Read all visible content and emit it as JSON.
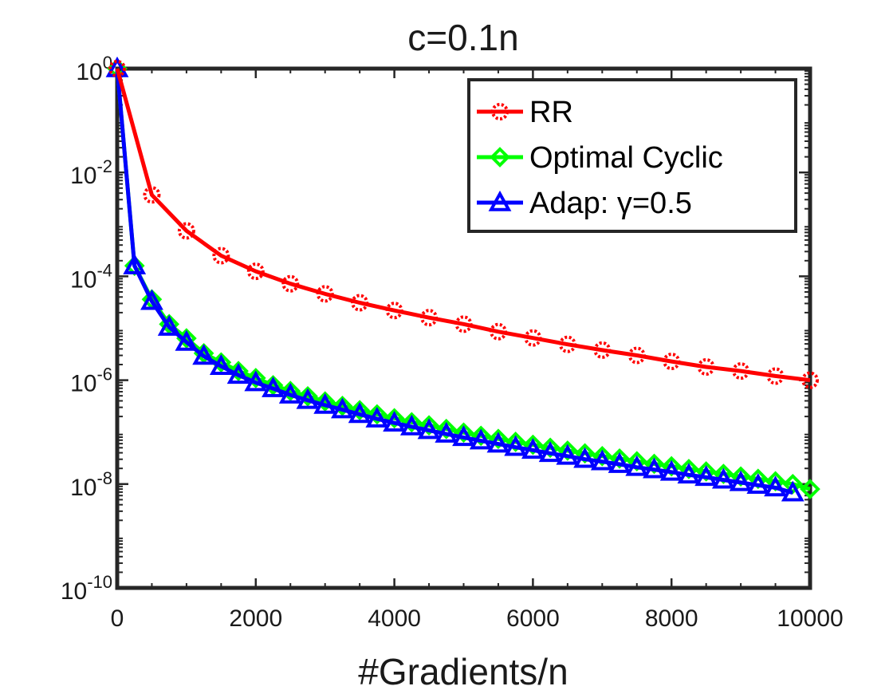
{
  "chart_data": {
    "type": "line",
    "title": "c=0.1n",
    "xlabel": "#Gradients/n",
    "ylabel": "",
    "xlim": [
      0,
      10000
    ],
    "ylim": [
      1e-10,
      1
    ],
    "yscale": "log",
    "x_ticks": [
      0,
      2000,
      4000,
      6000,
      8000,
      10000
    ],
    "x_tick_labels": [
      "0",
      "2000",
      "4000",
      "6000",
      "8000",
      "10000"
    ],
    "y_ticks": [
      1,
      0.01,
      0.0001,
      1e-06,
      1e-08,
      1e-10
    ],
    "y_tick_labels": [
      {
        "base": "10",
        "exp": "0"
      },
      {
        "base": "10",
        "exp": "-2"
      },
      {
        "base": "10",
        "exp": "-4"
      },
      {
        "base": "10",
        "exp": "-6"
      },
      {
        "base": "10",
        "exp": "-8"
      },
      {
        "base": "10",
        "exp": "-10"
      }
    ],
    "grid": false,
    "legend_position": "top-right",
    "series": [
      {
        "name": "RR",
        "color": "#ff0000",
        "marker": "circle",
        "x": [
          0,
          500,
          1000,
          1500,
          2000,
          2500,
          3000,
          3500,
          4000,
          4500,
          5000,
          5500,
          6000,
          6500,
          7000,
          7500,
          8000,
          8500,
          9000,
          9500,
          10000
        ],
        "y": [
          1,
          0.0037,
          0.00075,
          0.00025,
          0.000125,
          7.2e-05,
          4.6e-05,
          3.1e-05,
          2.2e-05,
          1.6e-05,
          1.2e-05,
          8.6e-06,
          6.5e-06,
          4.9e-06,
          3.8e-06,
          3e-06,
          2.3e-06,
          1.8e-06,
          1.5e-06,
          1.2e-06,
          1e-06
        ]
      },
      {
        "name": "Optimal Cyclic",
        "color": "#00ff00",
        "marker": "diamond",
        "x": [
          0,
          250,
          500,
          750,
          1000,
          1250,
          1500,
          1750,
          2000,
          2250,
          2500,
          2750,
          3000,
          3250,
          3500,
          3750,
          4000,
          4250,
          4500,
          4750,
          5000,
          5250,
          5500,
          5750,
          6000,
          6250,
          6500,
          6750,
          7000,
          7250,
          7500,
          7750,
          8000,
          8250,
          8500,
          8750,
          9000,
          9250,
          9500,
          9750,
          10000
        ],
        "y": [
          1,
          0.00016,
          3.6e-05,
          1.2e-05,
          6.4e-06,
          3.3e-06,
          2.2e-06,
          1.5e-06,
          1.1e-06,
          8e-07,
          6.2e-07,
          4.9e-07,
          3.9e-07,
          3.2e-07,
          2.65e-07,
          2.2e-07,
          1.85e-07,
          1.55e-07,
          1.35e-07,
          1.15e-07,
          9.8e-08,
          8.5e-08,
          7.4e-08,
          6.5e-08,
          5.7e-08,
          5e-08,
          4.4e-08,
          3.9e-08,
          3.45e-08,
          3.1e-08,
          2.75e-08,
          2.45e-08,
          2.2e-08,
          1.95e-08,
          1.75e-08,
          1.57e-08,
          1.4e-08,
          1.26e-08,
          1.13e-08,
          1e-08,
          8e-09
        ]
      },
      {
        "name": "Adap: γ=0.5",
        "color": "#0000ff",
        "marker": "triangle",
        "x": [
          0,
          250,
          500,
          750,
          1000,
          1250,
          1500,
          1750,
          2000,
          2250,
          2500,
          2750,
          3000,
          3250,
          3500,
          3750,
          4000,
          4250,
          4500,
          4750,
          5000,
          5250,
          5500,
          5750,
          6000,
          6250,
          6500,
          6750,
          7000,
          7250,
          7500,
          7750,
          8000,
          8250,
          8500,
          8750,
          9000,
          9250,
          9500,
          9750
        ],
        "y": [
          1,
          0.00016,
          3.3e-05,
          1.05e-05,
          5.4e-06,
          2.9e-06,
          1.85e-06,
          1.25e-06,
          9e-07,
          6.9e-07,
          5.2e-07,
          4.1e-07,
          3.3e-07,
          2.7e-07,
          2.2e-07,
          1.8e-07,
          1.5e-07,
          1.27e-07,
          1.08e-07,
          9.2e-08,
          7.9e-08,
          6.8e-08,
          5.9e-08,
          5.1e-08,
          4.5e-08,
          3.9e-08,
          3.45e-08,
          3e-08,
          2.7e-08,
          2.4e-08,
          2.1e-08,
          1.9e-08,
          1.7e-08,
          1.5e-08,
          1.35e-08,
          1.2e-08,
          1.07e-08,
          9.5e-09,
          8.5e-09,
          6.8e-09
        ]
      }
    ]
  }
}
